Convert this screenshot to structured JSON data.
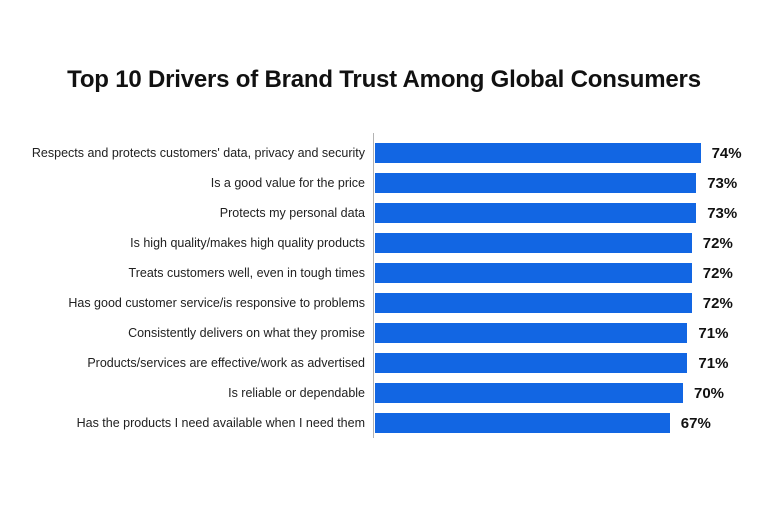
{
  "title": "Top 10 Drivers of Brand Trust Among Global Consumers",
  "chart_data": {
    "type": "bar",
    "orientation": "horizontal",
    "title": "Top 10 Drivers of Brand Trust Among Global Consumers",
    "xlabel": "",
    "ylabel": "",
    "xlim": [
      0,
      80
    ],
    "grid": false,
    "legend_position": "none",
    "value_suffix": "%",
    "bar_color": "#1266e3",
    "axis_line_color": "#b3b3b3",
    "categories": [
      "Respects and protects customers' data, privacy and security",
      "Is a good value for the price",
      "Protects my personal data",
      "Is high quality/makes high quality products",
      "Treats customers well, even in tough times",
      "Has good customer service/is responsive to problems",
      "Consistently delivers on what they promise",
      "Products/services are effective/work as advertised",
      "Is reliable or dependable",
      "Has the products I need available when I need them"
    ],
    "values": [
      74,
      73,
      73,
      72,
      72,
      72,
      71,
      71,
      70,
      67
    ],
    "value_labels": [
      "74%",
      "73%",
      "73%",
      "72%",
      "72%",
      "72%",
      "71%",
      "71%",
      "70%",
      "67%"
    ]
  }
}
